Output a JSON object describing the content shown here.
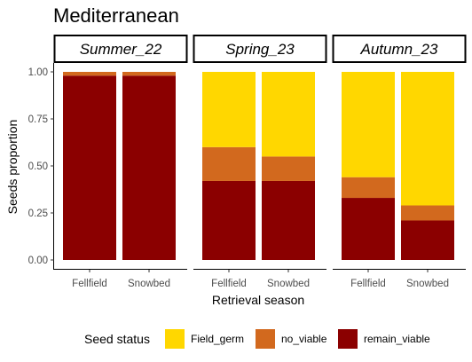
{
  "chart_data": {
    "type": "bar",
    "stacked": true,
    "title": "Mediterranean",
    "xlabel": "Retrieval season",
    "ylabel": "Seeds proportion",
    "ylim": [
      0,
      1
    ],
    "yticks": [
      "0.00",
      "0.25",
      "0.50",
      "0.75",
      "1.00"
    ],
    "categories": [
      "Fellfield",
      "Snowbed"
    ],
    "legend": {
      "title": "Seed status",
      "position": "bottom",
      "entries": [
        {
          "name": "Field_germ",
          "color": "#FFD700"
        },
        {
          "name": "no_viable",
          "color": "#D2691E"
        },
        {
          "name": "remain_viable",
          "color": "#8B0000"
        }
      ]
    },
    "facets": [
      {
        "label": "Summer_22",
        "series": [
          {
            "name": "remain_viable",
            "values": [
              0.98,
              0.98
            ]
          },
          {
            "name": "no_viable",
            "values": [
              0.02,
              0.02
            ]
          },
          {
            "name": "Field_germ",
            "values": [
              0.0,
              0.0
            ]
          }
        ]
      },
      {
        "label": "Spring_23",
        "series": [
          {
            "name": "remain_viable",
            "values": [
              0.42,
              0.42
            ]
          },
          {
            "name": "no_viable",
            "values": [
              0.18,
              0.13
            ]
          },
          {
            "name": "Field_germ",
            "values": [
              0.4,
              0.45
            ]
          }
        ]
      },
      {
        "label": "Autumn_23",
        "series": [
          {
            "name": "remain_viable",
            "values": [
              0.33,
              0.21
            ]
          },
          {
            "name": "no_viable",
            "values": [
              0.11,
              0.08
            ]
          },
          {
            "name": "Field_germ",
            "values": [
              0.56,
              0.71
            ]
          }
        ]
      }
    ]
  }
}
